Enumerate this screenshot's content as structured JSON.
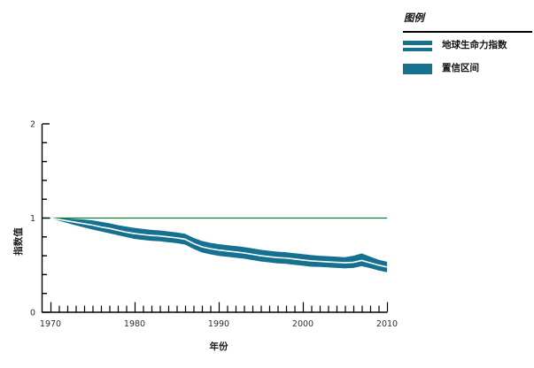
{
  "legend": {
    "title": "图例",
    "items": [
      {
        "label": "地球生命力指数",
        "swatch": "band-line"
      },
      {
        "label": "置信区间",
        "swatch": "solid"
      }
    ]
  },
  "chart_data": {
    "type": "area",
    "title": "",
    "xlabel": "年份",
    "ylabel": "指数值",
    "xlim": [
      1970,
      2010
    ],
    "ylim": [
      0,
      2
    ],
    "x_major_ticks": [
      1970,
      1980,
      1990,
      2000,
      2010
    ],
    "x_tick_labels": [
      "1970",
      "1980",
      "1990",
      "2000",
      "2010"
    ],
    "x_minor_tick_step": 1,
    "y_major_ticks": [
      0,
      1,
      2
    ],
    "y_tick_labels": [
      "0",
      "1",
      "2"
    ],
    "y_minor_tick_step": 0.2,
    "reference_line_y": 1,
    "grid": false,
    "legend_position": "top-right",
    "x": [
      1970,
      1971,
      1972,
      1973,
      1974,
      1975,
      1976,
      1977,
      1978,
      1979,
      1980,
      1981,
      1982,
      1983,
      1984,
      1985,
      1986,
      1987,
      1988,
      1989,
      1990,
      1991,
      1992,
      1993,
      1994,
      1995,
      1996,
      1997,
      1998,
      1999,
      2000,
      2001,
      2002,
      2003,
      2004,
      2005,
      2006,
      2007,
      2008,
      2009,
      2010
    ],
    "series": [
      {
        "name": "地球生命力指数",
        "values": [
          1.0,
          0.985,
          0.97,
          0.955,
          0.94,
          0.925,
          0.905,
          0.89,
          0.87,
          0.85,
          0.835,
          0.825,
          0.815,
          0.81,
          0.8,
          0.79,
          0.775,
          0.73,
          0.695,
          0.675,
          0.66,
          0.65,
          0.64,
          0.63,
          0.615,
          0.6,
          0.59,
          0.58,
          0.575,
          0.565,
          0.555,
          0.545,
          0.54,
          0.535,
          0.53,
          0.525,
          0.53,
          0.55,
          0.525,
          0.5,
          0.48
        ]
      },
      {
        "name": "ci_upper",
        "values": [
          1.002,
          1.0,
          0.995,
          0.99,
          0.985,
          0.975,
          0.96,
          0.945,
          0.925,
          0.91,
          0.895,
          0.885,
          0.875,
          0.868,
          0.858,
          0.848,
          0.833,
          0.79,
          0.757,
          0.737,
          0.723,
          0.713,
          0.703,
          0.693,
          0.678,
          0.663,
          0.653,
          0.643,
          0.637,
          0.627,
          0.617,
          0.607,
          0.6,
          0.595,
          0.59,
          0.585,
          0.6,
          0.625,
          0.59,
          0.557,
          0.536
        ]
      },
      {
        "name": "ci_lower",
        "values": [
          0.998,
          0.972,
          0.947,
          0.923,
          0.9,
          0.878,
          0.858,
          0.838,
          0.818,
          0.798,
          0.778,
          0.768,
          0.758,
          0.753,
          0.743,
          0.733,
          0.718,
          0.672,
          0.635,
          0.615,
          0.599,
          0.589,
          0.579,
          0.569,
          0.554,
          0.539,
          0.529,
          0.519,
          0.514,
          0.504,
          0.494,
          0.484,
          0.481,
          0.476,
          0.471,
          0.466,
          0.471,
          0.49,
          0.468,
          0.444,
          0.425
        ]
      }
    ],
    "colors": {
      "band": "#15718f",
      "index_line": "#ffffff",
      "reference_line": "#0e7c3a",
      "axis": "#000000",
      "tick_text": "#26313e",
      "title_text": "#1c1c1c"
    }
  }
}
